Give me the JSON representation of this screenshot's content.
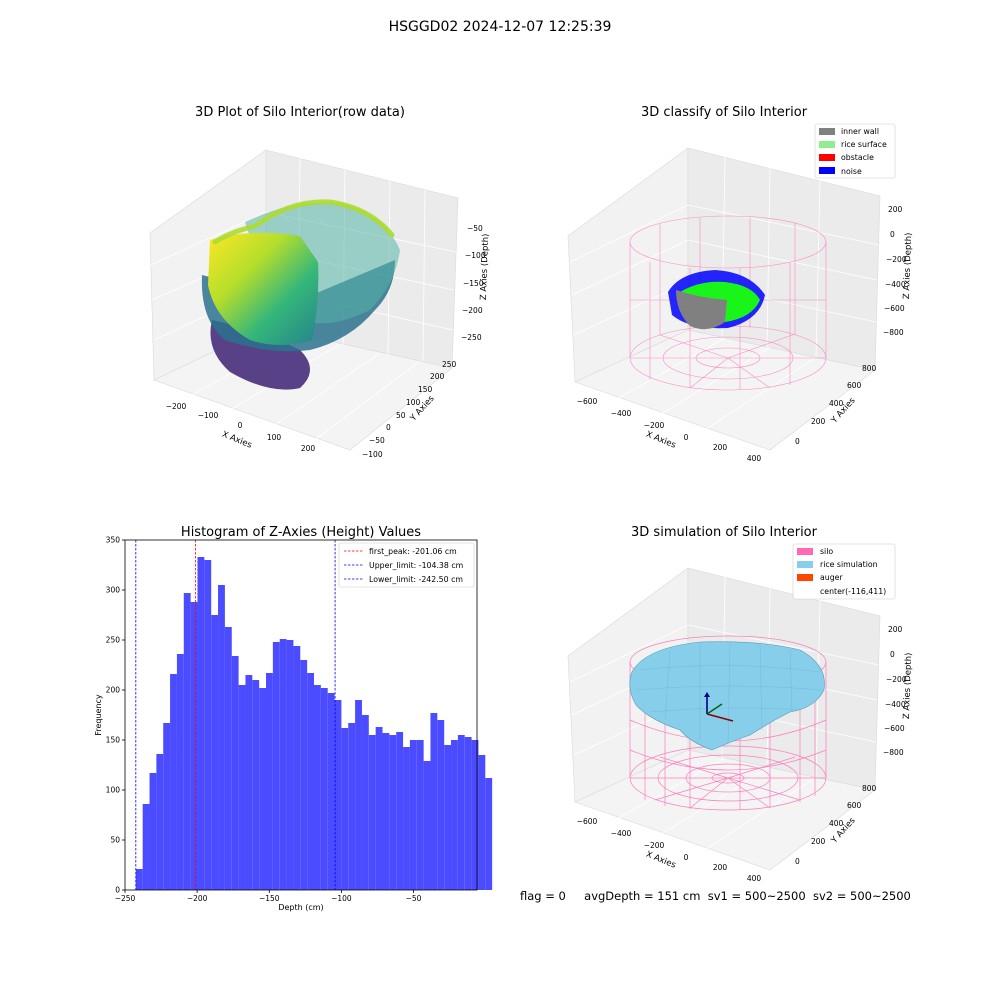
{
  "figure_title": "HSGGD02 2024-12-07 12:25:39",
  "chart_data": [
    {
      "type": "scatter3d",
      "title": "3D Plot of Silo Interior(row data)",
      "xlabel": "X Axies",
      "ylabel": "Y Axies",
      "zlabel": "Z Axies (Depth)",
      "x_ticks": [
        "−200",
        "−100",
        "0",
        "100",
        "200"
      ],
      "y_ticks": [
        "−100",
        "−50",
        "0",
        "50",
        "100",
        "150",
        "200",
        "250"
      ],
      "z_ticks": [
        "−50",
        "−100",
        "−150",
        "−200",
        "−250"
      ],
      "colormap": "viridis"
    },
    {
      "type": "scatter3d",
      "title": "3D classify of Silo Interior",
      "xlabel": "X Axies",
      "ylabel": "Y Axies",
      "zlabel": "Z Axies (Depth)",
      "x_ticks": [
        "−600",
        "−400",
        "−200",
        "0",
        "200",
        "400"
      ],
      "y_ticks": [
        "0",
        "200",
        "400",
        "600",
        "800"
      ],
      "z_ticks": [
        "200",
        "0",
        "−200",
        "−400",
        "−600",
        "−800"
      ],
      "legend": [
        {
          "label": "inner wall",
          "color": "#808080"
        },
        {
          "label": "rice surface",
          "color": "#90ee90"
        },
        {
          "label": "obstacle",
          "color": "#ff0000"
        },
        {
          "label": "noise",
          "color": "#0000ff"
        }
      ],
      "legend_position": "top-right"
    },
    {
      "type": "bar",
      "title": "Histogram of Z-Axies (Height) Values",
      "xlabel": "Depth (cm)",
      "ylabel": "Frequency",
      "xlim": [
        -250,
        -6
      ],
      "ylim": [
        0,
        350
      ],
      "x_ticks": [
        -250,
        -200,
        -150,
        -100,
        -50
      ],
      "x_tick_labels": [
        "−250",
        "−200",
        "−150",
        "−100",
        "−50"
      ],
      "y_ticks": [
        0,
        50,
        100,
        150,
        200,
        250,
        300,
        350
      ],
      "bin_start": -242.5,
      "bin_width": 4.75,
      "values": [
        21,
        86,
        117,
        136,
        167,
        216,
        236,
        297,
        288,
        333,
        330,
        275,
        305,
        263,
        234,
        205,
        215,
        210,
        202,
        217,
        248,
        251,
        250,
        244,
        230,
        217,
        205,
        202,
        197,
        190,
        162,
        167,
        190,
        175,
        155,
        163,
        157,
        155,
        158,
        143,
        150,
        150,
        129,
        177,
        170,
        145,
        150,
        155,
        153,
        150,
        135,
        112
      ],
      "bar_color": "#4b4bff",
      "vlines": [
        {
          "label": "first_peak: -201.06 cm",
          "x": -201.06,
          "color": "#ff0000"
        },
        {
          "label": "Upper_limit: -104.38 cm",
          "x": -104.38,
          "color": "#0000ff"
        },
        {
          "label": "Lower_limit: -242.50 cm",
          "x": -242.5,
          "color": "#0000ff"
        }
      ],
      "legend_position": "top-right"
    },
    {
      "type": "surface3d",
      "title": "3D simulation of Silo Interior",
      "xlabel": "X Axies",
      "ylabel": "Y Axies",
      "zlabel": "Z Axies (Depth)",
      "x_ticks": [
        "−600",
        "−400",
        "−200",
        "0",
        "200",
        "400"
      ],
      "y_ticks": [
        "0",
        "200",
        "400",
        "600",
        "800"
      ],
      "z_ticks": [
        "200",
        "0",
        "−200",
        "−400",
        "−600",
        "−800"
      ],
      "legend": [
        {
          "label": "silo",
          "color": "#ff69b4"
        },
        {
          "label": "rice simulation",
          "color": "#87ceeb"
        },
        {
          "label": "auger",
          "color": "#ff4500"
        },
        {
          "label": "center(-116,411)",
          "color": ""
        }
      ],
      "legend_position": "top-right"
    }
  ],
  "footer": {
    "flag": "flag = 0",
    "avg_depth": "avgDepth = 151 cm",
    "sv1": "sv1 = 500~2500",
    "sv2": "sv2 = 500~2500"
  }
}
